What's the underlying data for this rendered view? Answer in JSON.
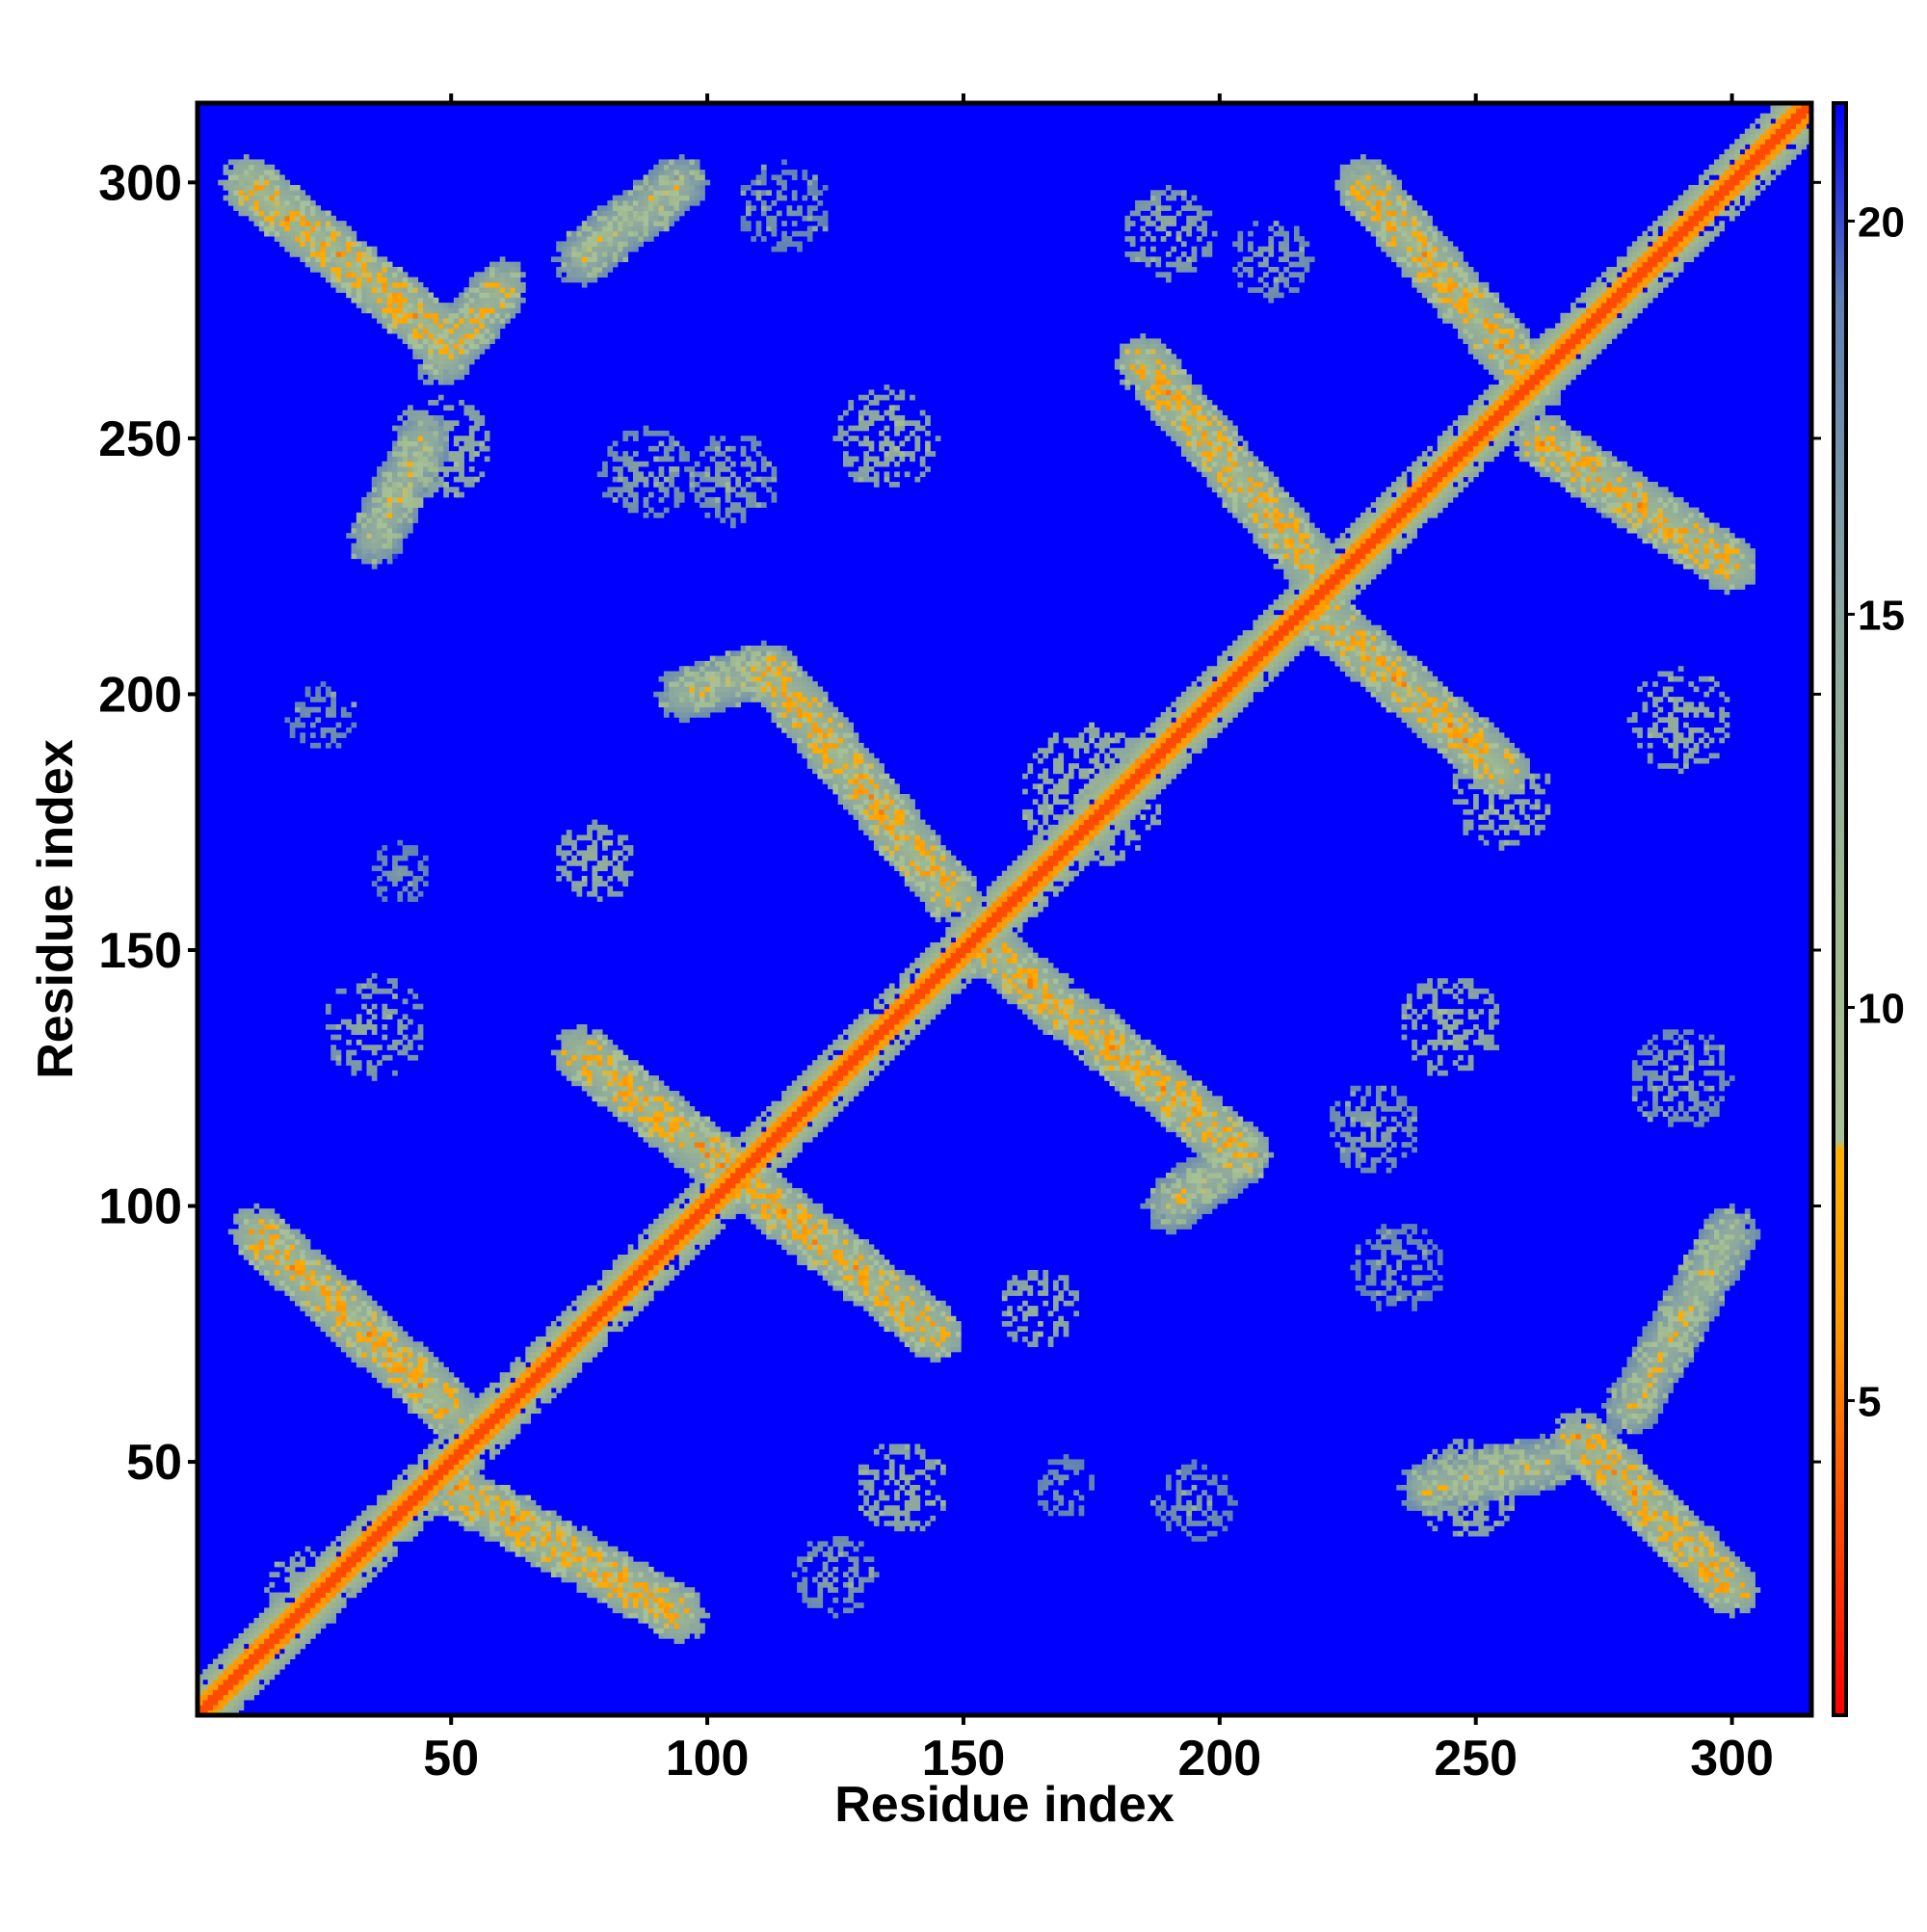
{
  "chart_data": {
    "type": "heatmap",
    "title": "",
    "xlabel": "Residue index",
    "ylabel": "Residue index",
    "xlim": [
      1,
      315
    ],
    "ylim": [
      1,
      315
    ],
    "x_ticks": [
      50,
      100,
      150,
      200,
      250,
      300
    ],
    "y_ticks": [
      50,
      100,
      150,
      200,
      250,
      300
    ],
    "x_tick_labels": [
      "50",
      "100",
      "150",
      "200",
      "250",
      "300"
    ],
    "y_tick_labels": [
      "50",
      "100",
      "150",
      "200",
      "250",
      "300"
    ],
    "colorbar": {
      "range": [
        1,
        21.5
      ],
      "ticks": [
        5,
        10,
        15,
        20
      ],
      "tick_labels": [
        "5",
        "10",
        "15",
        "20"
      ],
      "stops": [
        {
          "value": 1,
          "color": "#ff0000"
        },
        {
          "value": 4,
          "color": "#ff5a00"
        },
        {
          "value": 6,
          "color": "#ff9a00"
        },
        {
          "value": 8.2,
          "color": "#ffb000"
        },
        {
          "value": 8.3,
          "color": "#a9c29a"
        },
        {
          "value": 11,
          "color": "#9fb98f"
        },
        {
          "value": 15,
          "color": "#8aa6a0"
        },
        {
          "value": 19,
          "color": "#5f7fb3"
        },
        {
          "value": 21.5,
          "color": "#0000ff"
        }
      ]
    },
    "background_value": 21.5,
    "background_color": "#0000ff",
    "diagonal": {
      "from": 1,
      "to": 315,
      "core_value": 3.5,
      "mid_value": 6,
      "band_value": 11
    },
    "contact_bands": [
      {
        "x1": 10,
        "y1": 300,
        "x2": 48,
        "y2": 270,
        "value": 11
      },
      {
        "x1": 48,
        "y1": 265,
        "x2": 60,
        "y2": 280,
        "value": 12
      },
      {
        "x1": 45,
        "y1": 250,
        "x2": 35,
        "y2": 230,
        "value": 13
      },
      {
        "x1": 75,
        "y1": 285,
        "x2": 95,
        "y2": 300,
        "value": 13
      },
      {
        "x1": 112,
        "y1": 205,
        "x2": 148,
        "y2": 160,
        "value": 11
      },
      {
        "x1": 95,
        "y1": 200,
        "x2": 112,
        "y2": 205,
        "value": 13
      },
      {
        "x1": 155,
        "y1": 150,
        "x2": 205,
        "y2": 110,
        "value": 11
      },
      {
        "x1": 190,
        "y1": 100,
        "x2": 205,
        "y2": 110,
        "value": 13
      },
      {
        "x1": 75,
        "y1": 130,
        "x2": 145,
        "y2": 75,
        "value": 11
      },
      {
        "x1": 12,
        "y1": 95,
        "x2": 50,
        "y2": 60,
        "value": 11
      },
      {
        "x1": 50,
        "y1": 45,
        "x2": 95,
        "y2": 20,
        "value": 11
      },
      {
        "x1": 185,
        "y1": 265,
        "x2": 218,
        "y2": 225,
        "value": 11
      },
      {
        "x1": 228,
        "y1": 300,
        "x2": 262,
        "y2": 260,
        "value": 11
      },
      {
        "x1": 262,
        "y1": 250,
        "x2": 300,
        "y2": 225,
        "value": 11
      },
      {
        "x1": 220,
        "y1": 215,
        "x2": 255,
        "y2": 185,
        "value": 11
      },
      {
        "x1": 270,
        "y1": 55,
        "x2": 300,
        "y2": 25,
        "value": 11
      },
      {
        "x1": 280,
        "y1": 60,
        "x2": 300,
        "y2": 95,
        "value": 13
      },
      {
        "x1": 240,
        "y1": 45,
        "x2": 265,
        "y2": 50,
        "value": 13
      }
    ],
    "contact_patches": [
      {
        "x": 48,
        "y": 248,
        "r": 10,
        "value": 13
      },
      {
        "x": 35,
        "y": 135,
        "r": 10,
        "value": 14
      },
      {
        "x": 25,
        "y": 195,
        "r": 7,
        "value": 16
      },
      {
        "x": 40,
        "y": 165,
        "r": 6,
        "value": 16
      },
      {
        "x": 78,
        "y": 167,
        "r": 8,
        "value": 13
      },
      {
        "x": 88,
        "y": 243,
        "r": 9,
        "value": 15
      },
      {
        "x": 135,
        "y": 250,
        "r": 10,
        "value": 13
      },
      {
        "x": 115,
        "y": 295,
        "r": 9,
        "value": 16
      },
      {
        "x": 105,
        "y": 242,
        "r": 9,
        "value": 15
      },
      {
        "x": 175,
        "y": 180,
        "r": 14,
        "value": 12
      },
      {
        "x": 165,
        "y": 80,
        "r": 8,
        "value": 13
      },
      {
        "x": 138,
        "y": 45,
        "r": 9,
        "value": 13
      },
      {
        "x": 125,
        "y": 28,
        "r": 8,
        "value": 15
      },
      {
        "x": 170,
        "y": 45,
        "r": 6,
        "value": 16
      },
      {
        "x": 195,
        "y": 42,
        "r": 8,
        "value": 16
      },
      {
        "x": 190,
        "y": 290,
        "r": 9,
        "value": 14
      },
      {
        "x": 210,
        "y": 285,
        "r": 8,
        "value": 15
      },
      {
        "x": 245,
        "y": 135,
        "r": 10,
        "value": 13
      },
      {
        "x": 230,
        "y": 115,
        "r": 9,
        "value": 15
      },
      {
        "x": 290,
        "y": 125,
        "r": 10,
        "value": 15
      },
      {
        "x": 235,
        "y": 88,
        "r": 9,
        "value": 16
      },
      {
        "x": 255,
        "y": 180,
        "r": 10,
        "value": 13
      },
      {
        "x": 290,
        "y": 195,
        "r": 10,
        "value": 13
      },
      {
        "x": 248,
        "y": 45,
        "r": 10,
        "value": 13
      },
      {
        "x": 22,
        "y": 25,
        "r": 8,
        "value": 13
      }
    ]
  }
}
